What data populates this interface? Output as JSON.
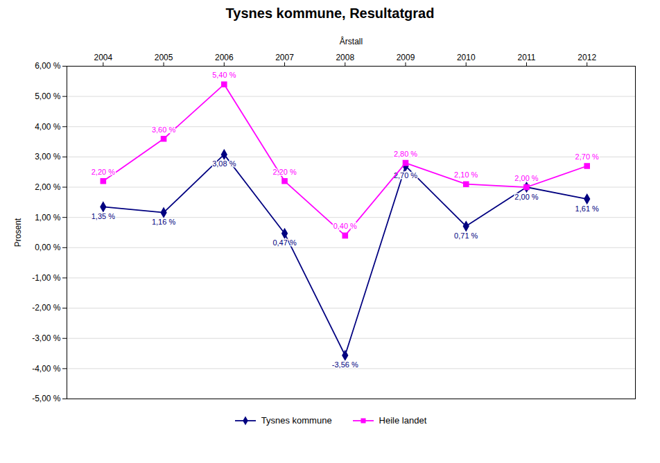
{
  "chart_data": {
    "type": "line",
    "title": "Tysnes kommune, Resultatgrad",
    "xlabel": "Årstall",
    "ylabel": "Prosent",
    "x": [
      2004,
      2005,
      2006,
      2007,
      2008,
      2009,
      2010,
      2011,
      2012
    ],
    "series": [
      {
        "name": "Tysnes kommune",
        "color": "#000080",
        "marker": "diamond",
        "values": [
          1.35,
          1.16,
          3.08,
          0.47,
          -3.56,
          2.7,
          0.71,
          2.0,
          1.61
        ],
        "value_labels": [
          "1,35 %",
          "1,16 %",
          "3,08 %",
          "0,47 %",
          "-3,56 %",
          "2,70 %",
          "0,71 %",
          "2,00 %",
          "1,61 %"
        ]
      },
      {
        "name": "Heile landet",
        "color": "#FF00FF",
        "marker": "square",
        "values": [
          2.2,
          3.6,
          5.4,
          2.2,
          0.4,
          2.8,
          2.1,
          2.0,
          2.7
        ],
        "value_labels": [
          "2,20 %",
          "3,60 %",
          "5,40 %",
          "2,20 %",
          "0,40 %",
          "2,80 %",
          "2,10 %",
          "2,00 %",
          "2,70 %"
        ]
      }
    ],
    "xlim": [
      2003.4,
      2012.8
    ],
    "xticks": [
      2004,
      2005,
      2006,
      2007,
      2008,
      2009,
      2010,
      2011,
      2012
    ],
    "ylim": [
      -5.0,
      6.0
    ],
    "yticks": [
      {
        "value": -5.0,
        "label": "-5,00 %"
      },
      {
        "value": -4.0,
        "label": "-4,00 %"
      },
      {
        "value": -3.0,
        "label": "-3,00 %"
      },
      {
        "value": -2.0,
        "label": "-2,00 %"
      },
      {
        "value": -1.0,
        "label": "-1,00 %"
      },
      {
        "value": 0.0,
        "label": "0,00 %"
      },
      {
        "value": 1.0,
        "label": "1,00 %"
      },
      {
        "value": 2.0,
        "label": "2,00 %"
      },
      {
        "value": 3.0,
        "label": "3,00 %"
      },
      {
        "value": 4.0,
        "label": "4,00 %"
      },
      {
        "value": 5.0,
        "label": "5,00 %"
      },
      {
        "value": 6.0,
        "label": "6,00 %"
      }
    ],
    "grid": true,
    "legend": "bottom",
    "data_labels": true
  }
}
